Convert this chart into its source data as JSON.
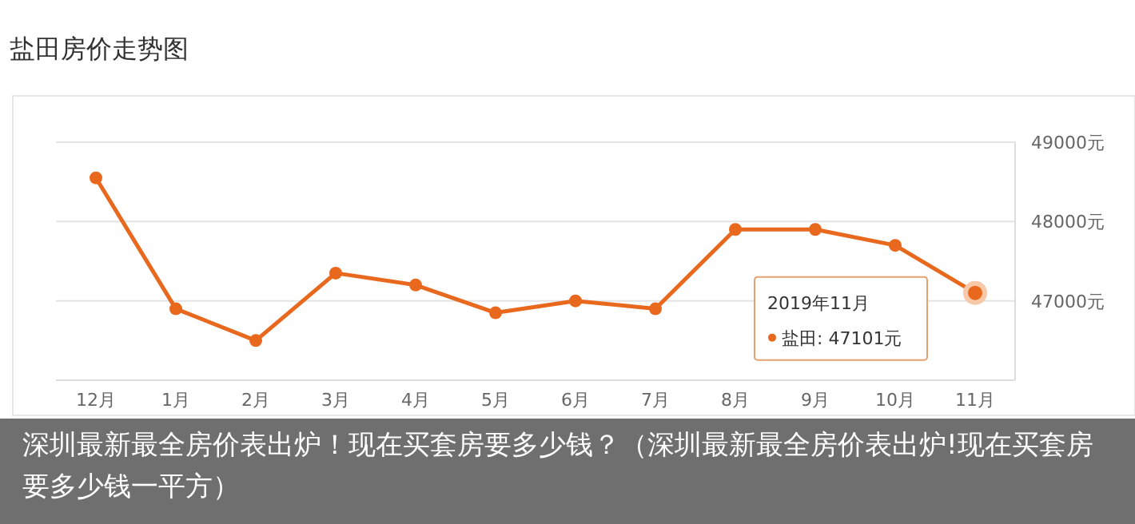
{
  "chart_data": {
    "type": "line",
    "title": "盐田房价走势图",
    "categories": [
      "12月",
      "1月",
      "2月",
      "3月",
      "4月",
      "5月",
      "6月",
      "7月",
      "8月",
      "9月",
      "10月",
      "11月"
    ],
    "series": [
      {
        "color": "#e8691e",
        "values": [
          48550,
          46900,
          46500,
          47350,
          47200,
          46850,
          47000,
          46900,
          47900,
          47900,
          47700,
          47101
        ]
      }
    ],
    "ylim": [
      46000,
      49000
    ],
    "yticks": [
      {
        "value": 47000,
        "label": "47000元"
      },
      {
        "value": 48000,
        "label": "48000元"
      },
      {
        "value": 49000,
        "label": "49000元"
      }
    ],
    "grid": "y",
    "marker": "circle",
    "annotations": [
      "2019年11月",
      "盐田:  47101元",
      "深圳最新最全房价表出炉！现在买套房要多少钱？（深圳最新最全房价表出炉!现在买套房要多少钱一平方）"
    ]
  }
}
